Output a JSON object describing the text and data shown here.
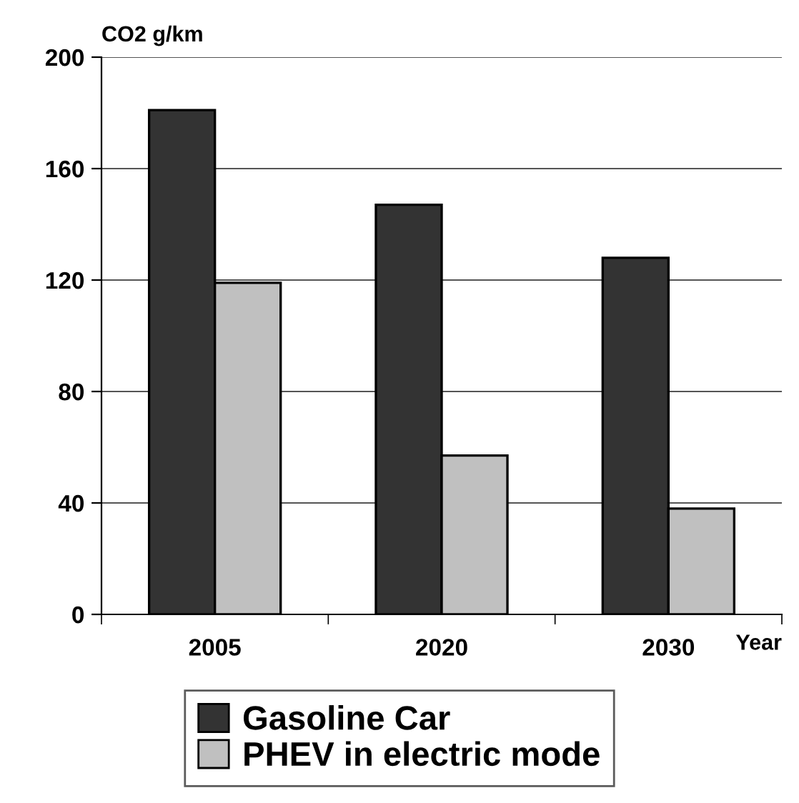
{
  "chart_data": {
    "type": "bar",
    "ylabel": "CO2 g/km",
    "xlabel": "Year",
    "categories": [
      "2005",
      "2020",
      "2030"
    ],
    "series": [
      {
        "name": "Gasoline Car",
        "color": "#333333",
        "values": [
          181,
          147,
          128
        ]
      },
      {
        "name": "PHEV in electric mode",
        "color": "#c0c0c0",
        "values": [
          119,
          57,
          38
        ]
      }
    ],
    "ylim": [
      0,
      200
    ],
    "yticks": [
      0,
      40,
      80,
      120,
      160,
      200
    ],
    "grid": "y",
    "legend": "bottom"
  }
}
